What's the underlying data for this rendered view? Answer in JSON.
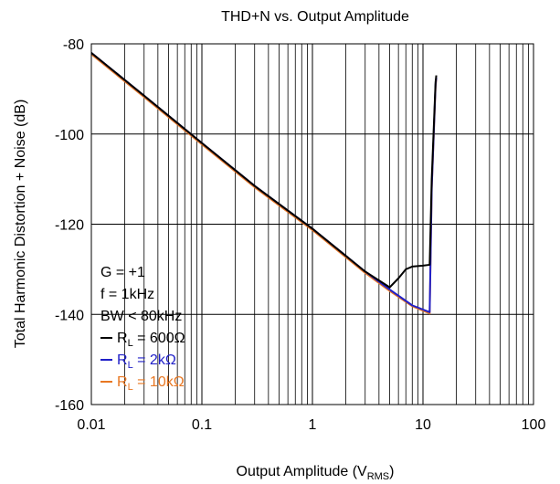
{
  "chart_data": {
    "type": "line",
    "title": "THD+N vs. Output Amplitude",
    "xlabel": "Output Amplitude (V",
    "xlabel_sub": "RMS",
    "xlabel_end": ")",
    "ylabel": "Total Harmonic Distortion + Noise (dB)",
    "x_scale": "log",
    "xlim": [
      0.01,
      100
    ],
    "ylim": [
      -160,
      -80
    ],
    "x_ticks": [
      {
        "value": 0.01,
        "label": "0.01"
      },
      {
        "value": 0.1,
        "label": "0.1"
      },
      {
        "value": 1,
        "label": "1"
      },
      {
        "value": 10,
        "label": "10"
      },
      {
        "value": 100,
        "label": "100"
      }
    ],
    "y_ticks": [
      {
        "value": -80,
        "label": "-80"
      },
      {
        "value": -100,
        "label": "-100"
      },
      {
        "value": -120,
        "label": "-120"
      },
      {
        "value": -140,
        "label": "-140"
      },
      {
        "value": -160,
        "label": "-160"
      }
    ],
    "grid": true,
    "conditions": [
      "G = +1",
      "f = 1kHz",
      "BW < 80kHz"
    ],
    "legend_position": "bottom-left",
    "series": [
      {
        "name_main": "R",
        "name_sub": "L",
        "name_rest": " = 600Ω",
        "color": "#000000",
        "points": [
          [
            0.01,
            -82
          ],
          [
            0.03,
            -91.5
          ],
          [
            0.1,
            -102
          ],
          [
            0.3,
            -111.5
          ],
          [
            1,
            -121
          ],
          [
            3,
            -130.5
          ],
          [
            5,
            -134
          ],
          [
            6,
            -132
          ],
          [
            7,
            -130
          ],
          [
            8,
            -129.4
          ],
          [
            10,
            -129.2
          ],
          [
            11.5,
            -129
          ],
          [
            12,
            -110
          ],
          [
            13,
            -88.5
          ],
          [
            13.2,
            -87
          ]
        ]
      },
      {
        "name_main": "R",
        "name_sub": "L",
        "name_rest": " = 2kΩ",
        "color": "#2020c8",
        "points": [
          [
            0.01,
            -82
          ],
          [
            0.03,
            -91.5
          ],
          [
            0.1,
            -102
          ],
          [
            0.3,
            -111.5
          ],
          [
            1,
            -121
          ],
          [
            3,
            -130.5
          ],
          [
            5,
            -134.5
          ],
          [
            8,
            -138
          ],
          [
            11.5,
            -139.5
          ],
          [
            12,
            -112
          ],
          [
            13,
            -89
          ],
          [
            13.2,
            -87.5
          ]
        ]
      },
      {
        "name_main": "R",
        "name_sub": "L",
        "name_rest": " = 10kΩ",
        "color": "#e87722",
        "points": [
          [
            0.01,
            -82.3
          ],
          [
            0.03,
            -91.8
          ],
          [
            0.1,
            -102.3
          ],
          [
            0.3,
            -111.8
          ],
          [
            1,
            -121.3
          ],
          [
            3,
            -130.8
          ],
          [
            5,
            -134.8
          ],
          [
            8,
            -138.2
          ],
          [
            11.5,
            -139.8
          ],
          [
            12,
            -112
          ],
          [
            13,
            -89.5
          ],
          [
            13.2,
            -87.8
          ]
        ]
      }
    ]
  }
}
